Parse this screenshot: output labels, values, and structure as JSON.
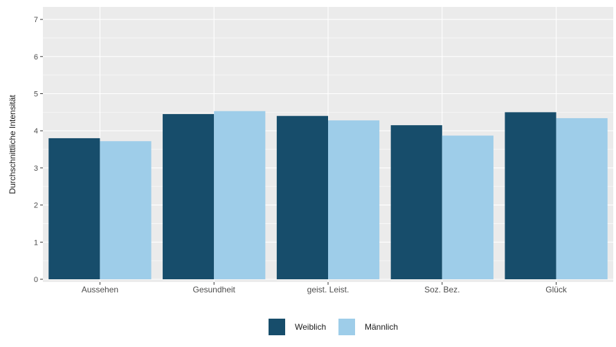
{
  "chart_data": {
    "type": "bar",
    "ylabel": "Durchschnittliche Intensität",
    "xlabel": "",
    "categories": [
      "Aussehen",
      "Gesundheit",
      "geist. Leist.",
      "Soz. Bez.",
      "Glück"
    ],
    "series": [
      {
        "name": "Weiblich",
        "color": "#174d6b",
        "values": [
          3.8,
          4.45,
          4.4,
          4.15,
          4.5
        ]
      },
      {
        "name": "Männlich",
        "color": "#9ecde9",
        "values": [
          3.72,
          4.53,
          4.28,
          3.87,
          4.34
        ]
      }
    ],
    "ylim": [
      0,
      7.3
    ],
    "yticks": [
      "0",
      "1",
      "2",
      "3",
      "4",
      "5",
      "6",
      "7"
    ],
    "grid": true,
    "legend_position": "bottom",
    "panel_color": "#ebebeb",
    "grid_color": "#ffffff"
  }
}
